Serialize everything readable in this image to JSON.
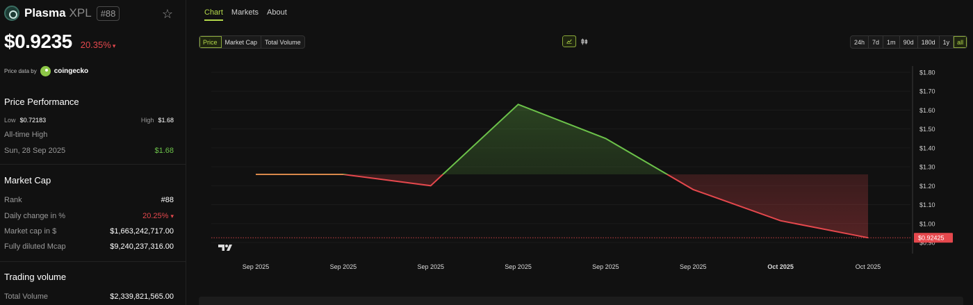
{
  "asset": {
    "name": "Plasma",
    "symbol": "XPL",
    "rank_badge": "#88",
    "price": "$0.9235",
    "change": "20.35%",
    "change_arrow": "▾"
  },
  "price_data": {
    "label": "Price data by",
    "source": "coingecko"
  },
  "performance": {
    "title": "Price Performance",
    "low_label": "Low",
    "low_value": "$0.72183",
    "high_label": "High",
    "high_value": "$1.68",
    "ath_label": "All-time High",
    "ath_date": "Sun, 28 Sep 2025",
    "ath_value": "$1.68"
  },
  "market_cap": {
    "title": "Market Cap",
    "rows": [
      {
        "label": "Rank",
        "value": "#88"
      },
      {
        "label": "Daily change in %",
        "value": "20.25%",
        "arrow": "▾"
      },
      {
        "label": "Market cap in $",
        "value": "$1,663,242,717.00"
      },
      {
        "label": "Fully diluted Mcap",
        "value": "$9,240,237,316.00"
      }
    ]
  },
  "trading": {
    "title": "Trading volume",
    "row": {
      "label": "Total Volume",
      "value": "$2,339,821,565.00"
    }
  },
  "tabs": [
    "Chart",
    "Markets",
    "About"
  ],
  "metric_buttons": [
    "Price",
    "Market Cap",
    "Total Volume"
  ],
  "range_buttons": [
    "24h",
    "7d",
    "1m",
    "90d",
    "180d",
    "1y",
    "all"
  ],
  "icons": {
    "star": "star-icon",
    "line_chart": "line-chart-icon",
    "candles": "candlestick-icon",
    "watermark": "tradingview-logo"
  },
  "colors": {
    "accent": "#b4d94a",
    "up": "#6cc24a",
    "down": "#e5484d",
    "baseline": "#d8884a"
  },
  "chart_data": {
    "type": "line",
    "x_labels": [
      "Sep 2025",
      "Sep 2025",
      "Sep 2025",
      "Sep 2025",
      "Sep 2025",
      "Sep 2025",
      "Oct 2025",
      "Oct 2025"
    ],
    "y_ticks": [
      "$1.80",
      "$1.70",
      "$1.60",
      "$1.50",
      "$1.40",
      "$1.30",
      "$1.20",
      "$1.10",
      "$1.00",
      "$0.90"
    ],
    "ylim": [
      0.9,
      1.8
    ],
    "baseline": 1.26,
    "values": [
      1.26,
      1.26,
      1.2,
      1.63,
      1.45,
      1.18,
      1.015,
      0.925
    ],
    "current_label": "$0.92425"
  }
}
